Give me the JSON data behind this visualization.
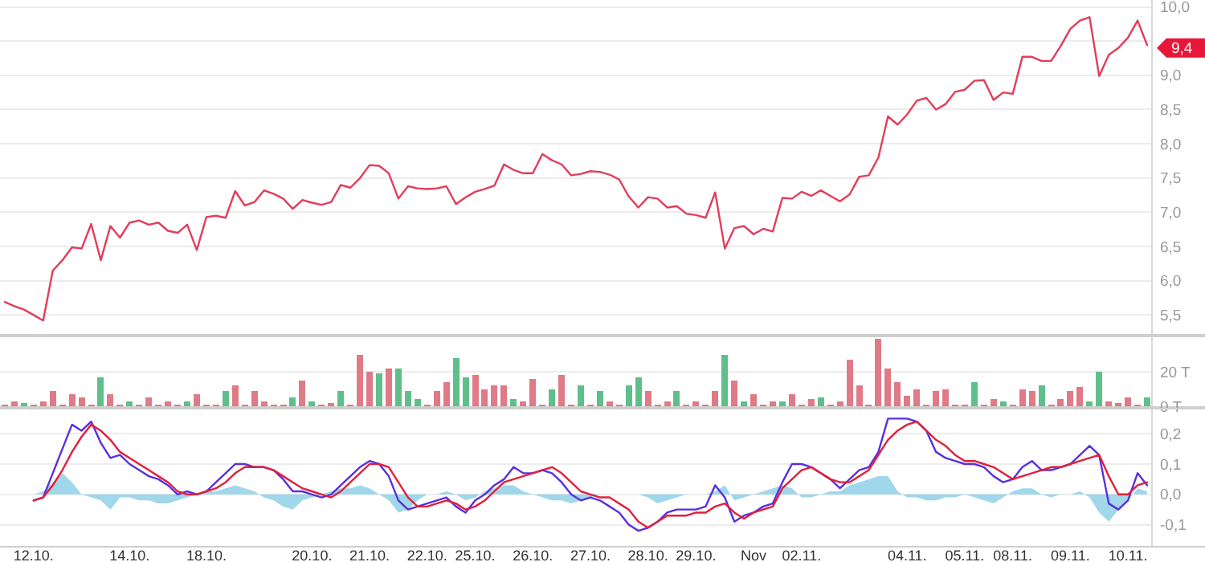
{
  "chart_data": [
    {
      "type": "line",
      "ylim": [
        5.2,
        10.1
      ],
      "yticks": [
        {
          "value": 5.5,
          "label": "5,5"
        },
        {
          "value": 6,
          "label": "6,0"
        },
        {
          "value": 6.5,
          "label": "6,5"
        },
        {
          "value": 7,
          "label": "7,0"
        },
        {
          "value": 7.5,
          "label": "7,5"
        },
        {
          "value": 8,
          "label": "8,0"
        },
        {
          "value": 8.5,
          "label": "8,5"
        },
        {
          "value": 9,
          "label": "9,0"
        },
        {
          "value": 9.5,
          "label": null
        },
        {
          "value": 10,
          "label": "10,0"
        }
      ],
      "grid": "y",
      "tick_labels": "y",
      "categories": [
        null,
        null,
        null,
        null,
        null,
        null,
        null,
        null,
        null,
        null,
        null,
        null,
        null,
        null,
        null,
        null,
        null,
        null,
        null,
        null,
        null,
        null,
        null,
        null,
        null,
        null,
        null,
        null,
        null,
        null,
        null,
        null,
        null,
        null,
        null,
        null,
        null,
        null,
        null,
        null,
        null,
        null,
        null,
        null,
        null,
        null,
        null,
        null,
        null,
        null,
        null,
        null,
        null,
        null,
        null,
        null,
        null,
        null,
        null,
        null,
        null,
        null,
        null,
        null,
        null,
        null,
        null,
        null,
        null,
        null,
        null,
        null,
        null,
        null,
        null,
        null,
        null,
        null,
        null,
        null,
        null,
        null,
        null,
        null,
        null,
        null,
        null,
        null,
        null,
        null,
        null,
        null,
        null,
        null,
        null,
        null,
        null,
        null,
        null,
        null,
        null,
        null,
        null,
        null,
        null,
        null,
        null,
        null,
        null,
        null,
        null,
        null,
        null,
        null,
        null,
        null,
        null,
        null,
        null,
        null
      ],
      "series": [
        {
          "color": "#e23d5a",
          "values": [
            5.69,
            5.63,
            5.58,
            5.5,
            5.42,
            6.15,
            6.3,
            6.49,
            6.47,
            6.83,
            6.3,
            6.8,
            6.63,
            6.85,
            6.88,
            6.82,
            6.85,
            6.73,
            6.7,
            6.82,
            6.45,
            6.93,
            6.95,
            6.92,
            7.31,
            7.1,
            7.15,
            7.32,
            7.27,
            7.2,
            7.05,
            7.18,
            7.14,
            7.11,
            7.15,
            7.4,
            7.36,
            7.5,
            7.69,
            7.68,
            7.57,
            7.2,
            7.38,
            7.35,
            7.34,
            7.35,
            7.38,
            7.12,
            7.22,
            7.3,
            7.34,
            7.39,
            7.7,
            7.62,
            7.57,
            7.57,
            7.85,
            7.76,
            7.7,
            7.54,
            7.56,
            7.6,
            7.59,
            7.55,
            7.48,
            7.23,
            7.07,
            7.22,
            7.2,
            7.07,
            7.09,
            6.98,
            6.96,
            6.92,
            7.29,
            6.47,
            6.77,
            6.8,
            6.68,
            6.76,
            6.72,
            7.21,
            7.2,
            7.3,
            7.24,
            7.32,
            7.24,
            7.16,
            7.26,
            7.52,
            7.54,
            7.8,
            8.4,
            8.28,
            8.43,
            8.63,
            8.67,
            8.5,
            8.58,
            8.76,
            8.79,
            8.92,
            8.93,
            8.64,
            8.75,
            8.73,
            9.27,
            9.27,
            9.21,
            9.21,
            9.43,
            9.68,
            9.8,
            9.85,
            8.99,
            9.3,
            9.4,
            9.55,
            9.8,
            9.44
          ]
        }
      ],
      "annotations": [
        {
          "text": "9,4",
          "y": 9.4
        }
      ]
    },
    {
      "type": "bar",
      "ylim": [
        0,
        41
      ],
      "yticks": [
        {
          "value": 0,
          "label": "0 T"
        },
        {
          "value": 20,
          "label": "20 T"
        }
      ],
      "grid": "y",
      "tick_labels": "y",
      "categories": [
        null,
        null,
        null,
        null,
        null,
        null,
        null,
        null,
        null,
        null,
        null,
        null,
        null,
        null,
        null,
        null,
        null,
        null,
        null,
        null,
        null,
        null,
        null,
        null,
        null,
        null,
        null,
        null,
        null,
        null,
        null,
        null,
        null,
        null,
        null,
        null,
        null,
        null,
        null,
        null,
        null,
        null,
        null,
        null,
        null,
        null,
        null,
        null,
        null,
        null,
        null,
        null,
        null,
        null,
        null,
        null,
        null,
        null,
        null,
        null,
        null,
        null,
        null,
        null,
        null,
        null,
        null,
        null,
        null,
        null,
        null,
        null,
        null,
        null,
        null,
        null,
        null,
        null,
        null,
        null,
        null,
        null,
        null,
        null,
        null,
        null,
        null,
        null,
        null,
        null,
        null,
        null,
        null,
        null,
        null,
        null,
        null,
        null,
        null,
        null,
        null,
        null,
        null,
        null,
        null,
        null,
        null,
        null,
        null,
        null,
        null,
        null,
        null,
        null,
        null,
        null,
        null,
        null,
        null,
        null
      ],
      "series": [
        {
          "values": [
            1,
            3,
            2,
            1,
            3,
            9,
            1,
            7,
            5,
            1,
            17,
            7,
            1,
            3,
            1,
            5,
            1,
            3,
            1,
            3,
            7,
            1,
            1,
            9,
            12,
            1,
            9,
            3,
            1,
            1,
            5,
            15,
            3,
            1,
            2,
            9,
            1,
            30,
            20,
            19,
            22,
            22,
            9,
            4,
            1,
            9,
            14,
            28,
            17,
            18,
            10,
            12,
            12,
            4,
            3,
            16,
            1,
            10,
            18,
            1,
            12,
            1,
            9,
            3,
            1,
            12,
            17,
            9,
            1,
            3,
            9,
            1,
            3,
            1,
            9,
            30,
            15,
            3,
            7,
            1,
            3,
            3,
            7,
            1,
            4,
            5,
            1,
            3,
            27,
            12,
            1,
            39,
            22,
            14,
            6,
            10,
            1,
            9,
            10,
            1,
            1,
            14,
            1,
            4,
            3,
            1,
            10,
            9,
            12,
            1,
            4,
            9,
            11,
            3,
            20,
            3,
            2,
            5,
            1,
            5
          ]
        }
      ],
      "colors": [
        "#e07a86",
        "#e07a86",
        "#5fbf8a",
        "#e07a86",
        "#e07a86",
        "#e07a86",
        "#e07a86",
        "#e07a86",
        "#e07a86",
        "#e07a86",
        "#5fbf8a",
        "#e07a86",
        "#e07a86",
        "#5fbf8a",
        "#e07a86",
        "#e07a86",
        "#e07a86",
        "#e07a86",
        "#e07a86",
        "#5fbf8a",
        "#e07a86",
        "#e07a86",
        "#e07a86",
        "#5fbf8a",
        "#e07a86",
        "#e07a86",
        "#e07a86",
        "#e07a86",
        "#e07a86",
        "#e07a86",
        "#5fbf8a",
        "#e07a86",
        "#5fbf8a",
        "#e07a86",
        "#e07a86",
        "#5fbf8a",
        "#e07a86",
        "#e07a86",
        "#e07a86",
        "#5fbf8a",
        "#e07a86",
        "#5fbf8a",
        "#5fbf8a",
        "#5fbf8a",
        "#e07a86",
        "#e07a86",
        "#e07a86",
        "#5fbf8a",
        "#5fbf8a",
        "#e07a86",
        "#e07a86",
        "#e07a86",
        "#e07a86",
        "#5fbf8a",
        "#e07a86",
        "#e07a86",
        "#e07a86",
        "#5fbf8a",
        "#e07a86",
        "#e07a86",
        "#5fbf8a",
        "#e07a86",
        "#5fbf8a",
        "#e07a86",
        "#e07a86",
        "#5fbf8a",
        "#5fbf8a",
        "#e07a86",
        "#e07a86",
        "#e07a86",
        "#5fbf8a",
        "#e07a86",
        "#e07a86",
        "#e07a86",
        "#e07a86",
        "#5fbf8a",
        "#e07a86",
        "#5fbf8a",
        "#e07a86",
        "#e07a86",
        "#e07a86",
        "#5fbf8a",
        "#e07a86",
        "#e07a86",
        "#e07a86",
        "#5fbf8a",
        "#e07a86",
        "#e07a86",
        "#e07a86",
        "#e07a86",
        "#e07a86",
        "#e07a86",
        "#e07a86",
        "#e07a86",
        "#e07a86",
        "#e07a86",
        "#e07a86",
        "#e07a86",
        "#e07a86",
        "#e07a86",
        "#e07a86",
        "#5fbf8a",
        "#e07a86",
        "#e07a86",
        "#5fbf8a",
        "#e07a86",
        "#e07a86",
        "#e07a86",
        "#5fbf8a",
        "#e07a86",
        "#e07a86",
        "#e07a86",
        "#e07a86",
        "#5fbf8a",
        "#5fbf8a",
        "#e07a86",
        "#e07a86",
        "#e07a86",
        "#e07a86",
        "#5fbf8a"
      ]
    },
    {
      "type": "line",
      "ylim": [
        -0.17,
        0.28
      ],
      "yticks": [
        {
          "value": -0.1,
          "label": "-0,1"
        },
        {
          "value": 0,
          "label": "0,0"
        },
        {
          "value": 0.1,
          "label": "0,1"
        },
        {
          "value": 0.2,
          "label": "0,2"
        }
      ],
      "grid": "y",
      "categories": [
        null,
        null,
        null,
        "12.10.",
        null,
        null,
        null,
        null,
        null,
        null,
        null,
        null,
        null,
        "14.10.",
        null,
        null,
        null,
        null,
        null,
        null,
        null,
        "18.10.",
        null,
        null,
        null,
        null,
        null,
        null,
        null,
        null,
        null,
        null,
        "20.10.",
        null,
        null,
        null,
        null,
        null,
        "21.10.",
        null,
        null,
        null,
        null,
        null,
        "22.10.",
        null,
        null,
        null,
        null,
        "25.10.",
        null,
        null,
        null,
        null,
        null,
        "26.10.",
        null,
        null,
        null,
        null,
        null,
        "27.10.",
        null,
        null,
        null,
        null,
        null,
        "28.10.",
        null,
        null,
        null,
        null,
        "29.10.",
        null,
        null,
        null,
        null,
        null,
        "Nov",
        null,
        null,
        null,
        null,
        "02.11.",
        null,
        null,
        null,
        null,
        null,
        null,
        null,
        null,
        null,
        null,
        "04.11.",
        null,
        null,
        null,
        null,
        null,
        "05.11.",
        null,
        null,
        null,
        null,
        "08.11.",
        null,
        null,
        null,
        null,
        null,
        "09.11.",
        null,
        null,
        null,
        null,
        null,
        "10.11.",
        null,
        null
      ],
      "series": [
        {
          "type": "area",
          "color": "#8fd0e6",
          "values": [
            null,
            null,
            null,
            0.0,
            0.01,
            0.04,
            0.07,
            0.04,
            0.0,
            -0.01,
            -0.02,
            -0.05,
            -0.01,
            -0.01,
            -0.02,
            -0.02,
            -0.03,
            -0.03,
            -0.02,
            -0.01,
            0.0,
            0.01,
            0.01,
            0.02,
            0.03,
            0.02,
            0.01,
            -0.01,
            -0.02,
            -0.04,
            -0.05,
            -0.02,
            -0.01,
            0.0,
            0.01,
            0.02,
            0.02,
            0.03,
            0.02,
            0.0,
            -0.02,
            -0.06,
            -0.05,
            -0.02,
            0.0,
            0.0,
            0.01,
            0.0,
            -0.02,
            -0.01,
            0.01,
            0.02,
            0.03,
            0.03,
            0.01,
            0.0,
            -0.01,
            -0.02,
            -0.02,
            -0.03,
            -0.02,
            -0.01,
            0.0,
            0.0,
            0.0,
            0.0,
            0.0,
            -0.01,
            -0.03,
            -0.02,
            -0.01,
            0.0,
            0.0,
            0.0,
            0.01,
            0.03,
            -0.02,
            -0.01,
            0.0,
            0.01,
            0.02,
            0.03,
            0.02,
            -0.01,
            -0.01,
            0.0,
            0.01,
            0.01,
            0.03,
            0.04,
            0.05,
            0.06,
            0.06,
            0.01,
            -0.01,
            -0.01,
            -0.02,
            -0.02,
            -0.01,
            -0.01,
            0.0,
            -0.01,
            -0.02,
            -0.03,
            -0.01,
            0.01,
            0.02,
            0.02,
            0.0,
            -0.01,
            0.0,
            0.0,
            0.01,
            -0.01,
            -0.06,
            -0.09,
            -0.05,
            -0.02,
            0.02,
            0.01
          ]
        },
        {
          "color": "#5a2fe0",
          "values": [
            null,
            null,
            null,
            -0.02,
            -0.01,
            0.07,
            0.15,
            0.23,
            0.21,
            0.24,
            0.17,
            0.12,
            0.13,
            0.1,
            0.08,
            0.06,
            0.05,
            0.03,
            0.0,
            0.01,
            0.0,
            0.01,
            0.04,
            0.07,
            0.1,
            0.1,
            0.09,
            0.09,
            0.08,
            0.05,
            0.01,
            0.01,
            0.0,
            -0.01,
            0.0,
            0.03,
            0.06,
            0.09,
            0.11,
            0.1,
            0.06,
            -0.02,
            -0.05,
            -0.04,
            -0.03,
            -0.02,
            -0.01,
            -0.04,
            -0.06,
            -0.02,
            0.0,
            0.03,
            0.05,
            0.09,
            0.07,
            0.07,
            0.08,
            0.07,
            0.04,
            0.0,
            -0.02,
            -0.01,
            -0.02,
            -0.04,
            -0.06,
            -0.1,
            -0.12,
            -0.11,
            -0.09,
            -0.06,
            -0.05,
            -0.05,
            -0.05,
            -0.04,
            0.03,
            -0.01,
            -0.09,
            -0.07,
            -0.06,
            -0.04,
            -0.03,
            0.04,
            0.1,
            0.1,
            0.09,
            0.07,
            0.05,
            0.02,
            0.05,
            0.08,
            0.09,
            0.14,
            0.25,
            0.25,
            0.25,
            0.24,
            0.21,
            0.14,
            0.12,
            0.11,
            0.1,
            0.1,
            0.09,
            0.06,
            0.04,
            0.05,
            0.09,
            0.11,
            0.08,
            0.08,
            0.09,
            0.1,
            0.13,
            0.16,
            0.13,
            -0.03,
            -0.05,
            -0.02,
            0.07,
            0.03
          ]
        },
        {
          "color": "#e0203a",
          "values": [
            null,
            null,
            null,
            -0.02,
            -0.01,
            0.03,
            0.08,
            0.14,
            0.19,
            0.23,
            0.21,
            0.18,
            0.14,
            0.12,
            0.1,
            0.08,
            0.06,
            0.04,
            0.01,
            0.0,
            0.0,
            0.01,
            0.02,
            0.04,
            0.07,
            0.09,
            0.09,
            0.09,
            0.08,
            0.06,
            0.04,
            0.02,
            0.01,
            0.0,
            -0.01,
            0.01,
            0.04,
            0.07,
            0.1,
            0.1,
            0.09,
            0.04,
            -0.01,
            -0.04,
            -0.04,
            -0.03,
            -0.02,
            -0.03,
            -0.05,
            -0.04,
            -0.02,
            0.01,
            0.04,
            0.05,
            0.06,
            0.07,
            0.08,
            0.09,
            0.07,
            0.04,
            0.01,
            0.0,
            -0.01,
            -0.01,
            -0.03,
            -0.05,
            -0.09,
            -0.11,
            -0.09,
            -0.07,
            -0.07,
            -0.07,
            -0.06,
            -0.06,
            -0.04,
            -0.03,
            -0.06,
            -0.08,
            -0.06,
            -0.05,
            -0.04,
            0.02,
            0.05,
            0.08,
            0.09,
            0.07,
            0.05,
            0.04,
            0.04,
            0.06,
            0.08,
            0.13,
            0.18,
            0.21,
            0.23,
            0.24,
            0.21,
            0.18,
            0.16,
            0.13,
            0.11,
            0.11,
            0.1,
            0.09,
            0.07,
            0.05,
            0.06,
            0.07,
            0.08,
            0.09,
            0.09,
            0.1,
            0.11,
            0.12,
            0.13,
            0.06,
            0.0,
            0.0,
            0.03,
            0.04
          ]
        }
      ]
    }
  ]
}
